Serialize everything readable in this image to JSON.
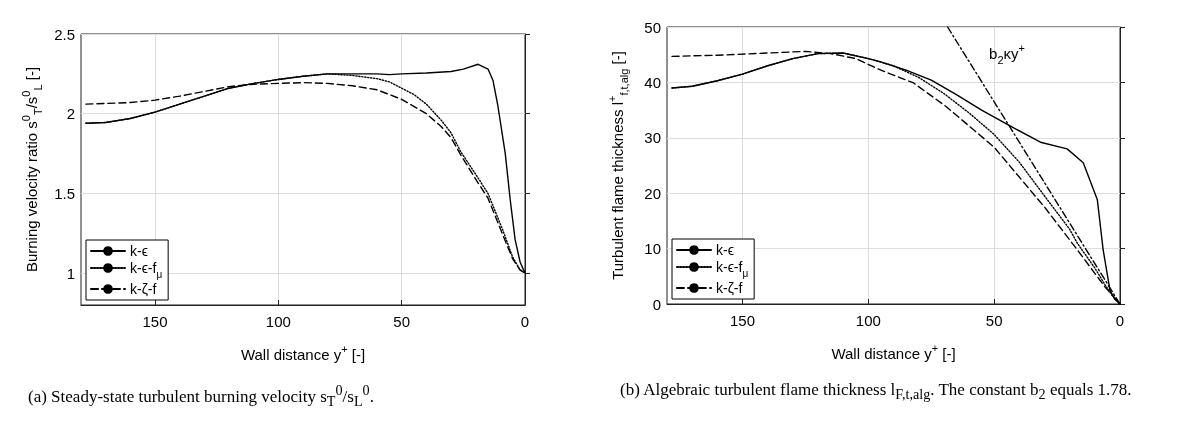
{
  "chart_data": [
    {
      "type": "line",
      "title": "(a) Steady-state turbulent burning velocity s$_{T}$$^{0}$/s$_{L}$$^{0}$.",
      "xlabel": "Wall distance y$^{+}$ [-]",
      "ylabel": "Burning velocity ratio s$^{0}$$_{T}$/s$^{0}$$_{L}$ [-]",
      "xlim": [
        180,
        0
      ],
      "xticks": [
        150,
        100,
        50,
        0
      ],
      "ylim": [
        0.8,
        2.5
      ],
      "yticks": [
        1,
        1.5,
        2,
        2.5
      ],
      "grid": true,
      "legend": "bottom left",
      "marker": "none",
      "series": [
        {
          "name": "k-ϵ",
          "color": "#000000",
          "line_style": "solid",
          "x": [
            178,
            170,
            160,
            150,
            140,
            130,
            120,
            110,
            100,
            90,
            80,
            70,
            60,
            55,
            50,
            40,
            30,
            25,
            19,
            15,
            13,
            11,
            8,
            6,
            4,
            2,
            0
          ],
          "values": [
            1.94,
            1.945,
            1.97,
            2.01,
            2.06,
            2.11,
            2.16,
            2.19,
            2.215,
            2.235,
            2.25,
            2.25,
            2.25,
            2.245,
            2.25,
            2.255,
            2.265,
            2.28,
            2.31,
            2.28,
            2.21,
            2.05,
            1.75,
            1.46,
            1.21,
            1.07,
            1.0
          ]
        },
        {
          "name": "k-ϵ-f$_{μ}$",
          "color": "#000000",
          "line_style": "dotted",
          "x": [
            178,
            170,
            160,
            150,
            140,
            130,
            120,
            110,
            100,
            90,
            80,
            75,
            70,
            60,
            55,
            50,
            45,
            40,
            34,
            30,
            26,
            20,
            15,
            9,
            5,
            2,
            0
          ],
          "values": [
            1.94,
            1.945,
            1.97,
            2.01,
            2.06,
            2.11,
            2.16,
            2.19,
            2.215,
            2.235,
            2.25,
            2.245,
            2.24,
            2.22,
            2.2,
            2.16,
            2.12,
            2.06,
            1.96,
            1.88,
            1.76,
            1.62,
            1.5,
            1.27,
            1.1,
            1.02,
            1.0
          ]
        },
        {
          "name": "k-ζ-f",
          "color": "#000000",
          "line_style": "dashed",
          "x": [
            178,
            160,
            150,
            140,
            130,
            120,
            110,
            100,
            90,
            80,
            70,
            60,
            50,
            40,
            34,
            30,
            26,
            20,
            15,
            9,
            5,
            2,
            0
          ],
          "values": [
            2.06,
            2.07,
            2.085,
            2.11,
            2.14,
            2.17,
            2.185,
            2.19,
            2.195,
            2.19,
            2.175,
            2.15,
            2.09,
            2.0,
            1.92,
            1.85,
            1.74,
            1.59,
            1.47,
            1.24,
            1.09,
            1.02,
            1.0
          ]
        }
      ]
    },
    {
      "type": "line",
      "title": "(b) Algebraic turbulent flame thickness l$_{F,t,alg}$. The constant b$_{2}$ equals 1.78.",
      "xlabel": "Wall distance y$^{+}$ [-]",
      "ylabel": "Turbulent flame thickness l$^{+}$$_{f,t,alg}$ [-]",
      "xlim": [
        180,
        0
      ],
      "xticks": [
        150,
        100,
        50,
        0
      ],
      "ylim": [
        0,
        50
      ],
      "yticks": [
        0,
        10,
        20,
        30,
        40,
        50
      ],
      "grid": true,
      "legend": "bottom left",
      "marker": "none",
      "annotations": [
        "b$_{2}$κy$^{+}$"
      ],
      "series": [
        {
          "name": "k-ϵ",
          "color": "#000000",
          "line_style": "solid",
          "x": [
            178,
            170,
            160,
            150,
            140,
            130,
            120,
            110,
            100,
            95,
            85,
            75,
            65,
            55,
            43.5,
            31.6,
            21,
            14.6,
            9,
            6.7,
            4,
            2,
            0
          ],
          "values": [
            39,
            39.3,
            40.3,
            41.5,
            43,
            44.3,
            45.2,
            45.3,
            44.3,
            43.7,
            42.2,
            40.4,
            37.8,
            35,
            32.1,
            29.2,
            28,
            25.5,
            18.8,
            9.8,
            2.5,
            0.8,
            0
          ]
        },
        {
          "name": "k-ϵ-f$_{μ}$",
          "color": "#000000",
          "line_style": "dotted",
          "x": [
            178,
            170,
            160,
            150,
            140,
            130,
            120,
            110,
            100,
            90,
            80,
            70,
            60,
            50,
            40,
            30,
            20,
            17,
            10,
            6,
            3,
            0
          ],
          "values": [
            39,
            39.3,
            40.3,
            41.5,
            43,
            44.3,
            45.2,
            45.3,
            44.3,
            43,
            40.9,
            38,
            34.5,
            30.6,
            25.6,
            19.5,
            13.5,
            11,
            6.5,
            3.5,
            1.5,
            0
          ]
        },
        {
          "name": "k-ζ-f",
          "color": "#000000",
          "line_style": "dashed",
          "x": [
            178,
            160,
            140,
            125,
            115,
            105,
            95,
            82,
            69,
            50,
            30,
            17,
            6,
            0
          ],
          "values": [
            44.7,
            44.9,
            45.3,
            45.6,
            45.2,
            44.3,
            42.2,
            39.9,
            35.6,
            28.3,
            17.5,
            9.8,
            3.1,
            0
          ]
        },
        {
          "color": "#000000",
          "line_style": "dashdot",
          "x": [
            68.5,
            0
          ],
          "values": [
            50,
            0
          ]
        }
      ]
    }
  ]
}
